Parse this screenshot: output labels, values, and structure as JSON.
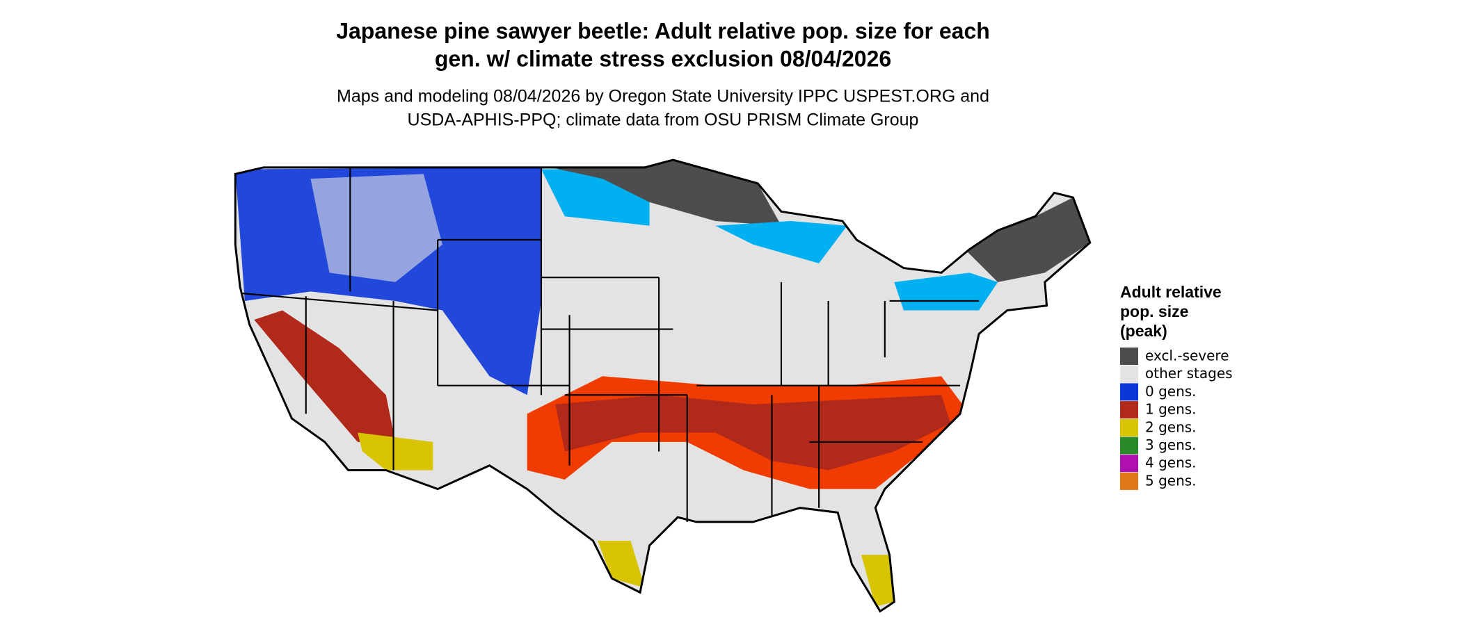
{
  "title": [
    "Japanese pine sawyer beetle: Adult relative pop. size for each",
    "gen. w/ climate stress exclusion 08/04/2026"
  ],
  "subtitle": [
    "Maps and modeling 08/04/2026 by Oregon State University IPPC USPEST.ORG and",
    "USDA-APHIS-PPQ; climate data from OSU PRISM Climate Group"
  ],
  "legend": {
    "title": [
      "Adult relative",
      "pop. size",
      "(peak)"
    ],
    "items": [
      {
        "label": "excl.-severe",
        "color": "#4d4d4d"
      },
      {
        "label": "other stages",
        "color": "#e3e3e3"
      },
      {
        "label": "0 gens.",
        "color": "#0b36d8"
      },
      {
        "label": "1 gens.",
        "color": "#b0291b"
      },
      {
        "label": "2 gens.",
        "color": "#d8c400"
      },
      {
        "label": "3 gens.",
        "color": "#2a8a2a"
      },
      {
        "label": "4 gens.",
        "color": "#b010b0"
      },
      {
        "label": "5 gens.",
        "color": "#e0781a"
      }
    ]
  }
}
